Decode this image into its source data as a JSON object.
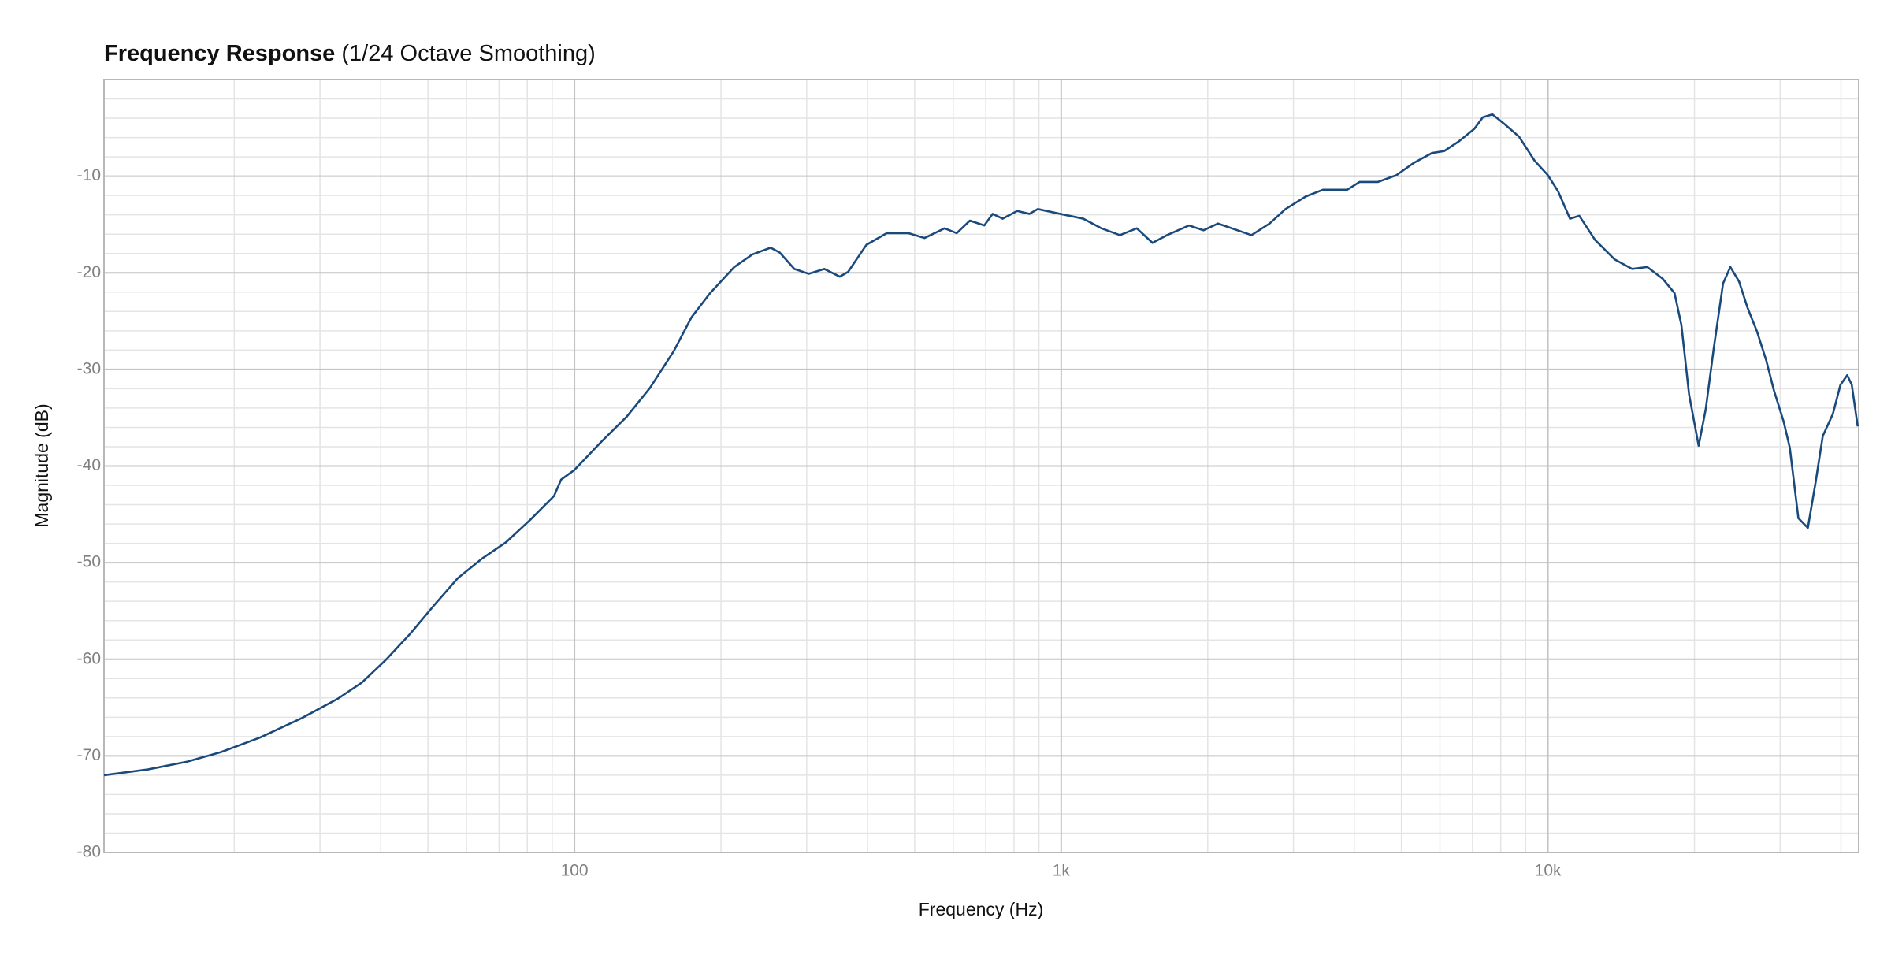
{
  "chart_data": {
    "type": "line",
    "title": "Frequency Response",
    "subtitle": "(1/24 Octave Smoothing)",
    "x_label": "Frequency (Hz)",
    "y_label": "Magnitude (dB)",
    "x_log": true,
    "grid": true,
    "xlim": [
      10.8,
      43500
    ],
    "ylim": [
      -80,
      0
    ],
    "xticks": [
      100,
      {
        "value": 1000,
        "label": "1k"
      },
      {
        "value": 10000,
        "label": "10k"
      }
    ],
    "x_minor_ticks": [
      20,
      30,
      40,
      50,
      60,
      70,
      80,
      90,
      200,
      300,
      400,
      500,
      600,
      700,
      800,
      900,
      2000,
      3000,
      4000,
      5000,
      6000,
      7000,
      8000,
      9000,
      20000,
      30000,
      40000
    ],
    "yticks": [
      -80,
      -70,
      -60,
      -50,
      -40,
      -30,
      -20,
      -10
    ],
    "y_minor_ticks": [
      -78,
      -76,
      -74,
      -72,
      -68,
      -66,
      -64,
      -62,
      -58,
      -56,
      -54,
      -52,
      -48,
      -46,
      -44,
      -42,
      -38,
      -36,
      -34,
      -32,
      -28,
      -26,
      -24,
      -22,
      -18,
      -16,
      -14,
      -12,
      -8,
      -6,
      -4,
      -2
    ],
    "x": [
      10.8,
      13.3,
      16.0,
      18.8,
      22.6,
      27.5,
      32.6,
      36.6,
      40.9,
      45.9,
      51.5,
      57.6,
      64.5,
      72.3,
      81.0,
      90.8,
      93.9,
      100,
      114,
      128,
      143,
      160,
      174,
      190,
      213,
      232,
      253,
      264,
      283,
      303,
      326,
      351,
      365,
      398,
      438,
      486,
      524,
      576,
      610,
      649,
      695,
      723,
      758,
      812,
      860,
      895,
      995,
      1110,
      1210,
      1320,
      1430,
      1540,
      1650,
      1830,
      1960,
      2100,
      2460,
      2680,
      2890,
      3180,
      3450,
      3870,
      4100,
      4470,
      4880,
      5310,
      5780,
      6120,
      6560,
      7060,
      7350,
      7690,
      8140,
      8720,
      9390,
      10000,
      10500,
      11100,
      11600,
      12500,
      13700,
      14900,
      16000,
      17200,
      18200,
      18800,
      19500,
      20400,
      21100,
      21900,
      22900,
      23700,
      24700,
      25700,
      26900,
      28100,
      29100,
      30500,
      31400,
      32700,
      34200,
      35500,
      36700,
      38500,
      39900,
      41200,
      42100,
      43300
    ],
    "series": [
      {
        "name": "Magnitude",
        "color": "#1a4a7c",
        "values": [
          -72,
          -71.4,
          -70.6,
          -69.6,
          -68.1,
          -66.1,
          -64.1,
          -62.4,
          -60.1,
          -57.4,
          -54.4,
          -51.6,
          -49.6,
          -47.9,
          -45.6,
          -43.1,
          -41.4,
          -40.4,
          -37.4,
          -34.9,
          -31.9,
          -28.1,
          -24.6,
          -22.1,
          -19.4,
          -18.1,
          -17.4,
          -17.9,
          -19.6,
          -20.1,
          -19.6,
          -20.4,
          -19.9,
          -17.1,
          -15.9,
          -15.9,
          -16.4,
          -15.4,
          -15.9,
          -14.6,
          -15.1,
          -13.9,
          -14.4,
          -13.6,
          -13.9,
          -13.4,
          -13.9,
          -14.4,
          -15.4,
          -16.1,
          -15.4,
          -16.9,
          -16.1,
          -15.1,
          -15.6,
          -14.9,
          -16.1,
          -14.9,
          -13.4,
          -12.1,
          -11.4,
          -11.4,
          -10.6,
          -10.6,
          -9.9,
          -8.6,
          -7.6,
          -7.4,
          -6.4,
          -5.1,
          -3.9,
          -3.6,
          -4.6,
          -5.9,
          -8.4,
          -9.9,
          -11.6,
          -14.4,
          -14.1,
          -16.6,
          -18.6,
          -19.6,
          -19.4,
          -20.6,
          -22.1,
          -25.4,
          -32.6,
          -37.9,
          -34.1,
          -27.9,
          -21.1,
          -19.4,
          -20.9,
          -23.6,
          -26.1,
          -29.1,
          -32.1,
          -35.4,
          -38.1,
          -45.4,
          -46.4,
          -41.6,
          -36.9,
          -34.6,
          -31.6,
          -30.6,
          -31.6,
          -35.9
        ]
      }
    ]
  }
}
